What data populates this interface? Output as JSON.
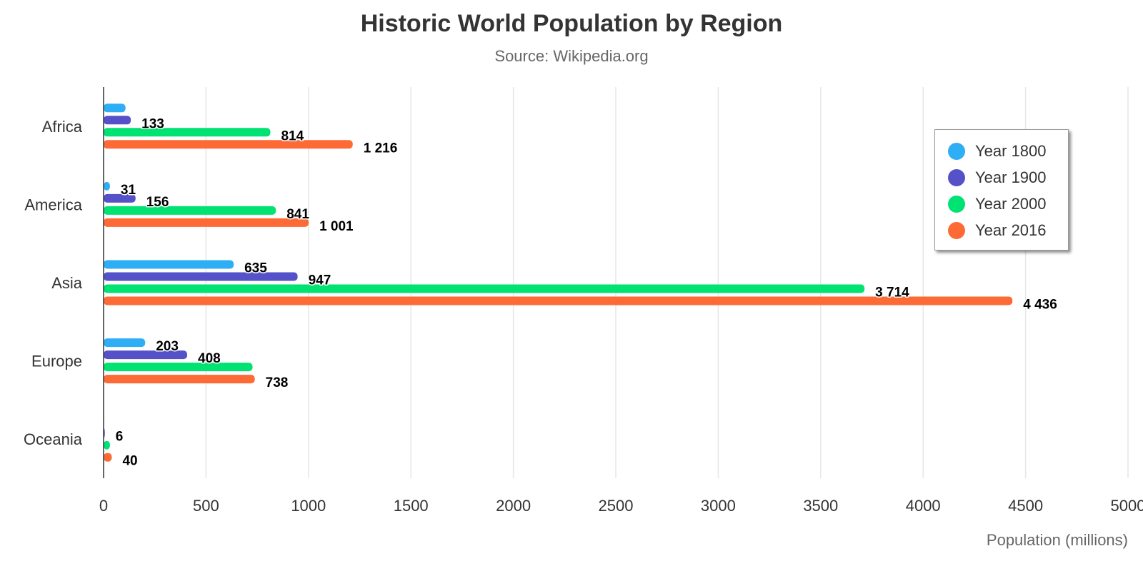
{
  "chart_data": {
    "type": "bar",
    "orientation": "horizontal",
    "title": "Historic World Population by Region",
    "subtitle": "Source: Wikipedia.org",
    "xlabel": "Population (millions)",
    "categories": [
      "Africa",
      "America",
      "Asia",
      "Europe",
      "Oceania"
    ],
    "xlim": [
      0,
      5000
    ],
    "xticks": [
      0,
      500,
      1000,
      1500,
      2000,
      2500,
      3000,
      3500,
      4000,
      4500,
      5000
    ],
    "grid": true,
    "legend_position": "top-right",
    "series": [
      {
        "name": "Year 1800",
        "color": "#2eaef5",
        "values": [
          107,
          31,
          635,
          203,
          2
        ],
        "labels": [
          "",
          "31",
          "635",
          "203",
          ""
        ]
      },
      {
        "name": "Year 1900",
        "color": "#5551c9",
        "values": [
          133,
          156,
          947,
          408,
          6
        ],
        "labels": [
          "133",
          "156",
          "947",
          "408",
          "6"
        ]
      },
      {
        "name": "Year 2000",
        "color": "#00e272",
        "values": [
          814,
          841,
          3714,
          727,
          31
        ],
        "labels": [
          "814",
          "841",
          "3 714",
          "",
          ""
        ]
      },
      {
        "name": "Year 2016",
        "color": "#fe6a35",
        "values": [
          1216,
          1001,
          4436,
          738,
          40
        ],
        "labels": [
          "1 216",
          "1 001",
          "4 436",
          "738",
          "40"
        ]
      }
    ]
  }
}
